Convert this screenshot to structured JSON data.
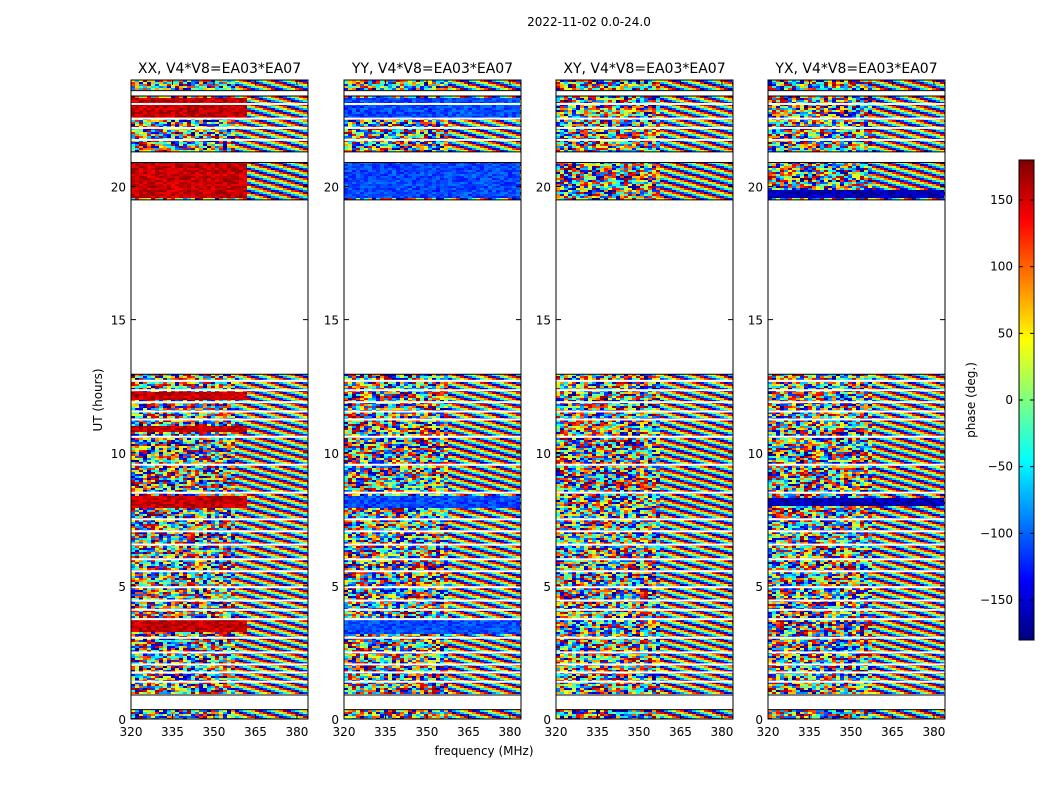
{
  "chart_data": {
    "type": "heatmap",
    "title": "2022-11-02 0.0-24.0",
    "xlabel": "frequency (MHz)",
    "ylabel": "UT (hours)",
    "xlim": [
      320,
      384
    ],
    "ylim": [
      0,
      24
    ],
    "xticks": [
      320,
      335,
      350,
      365,
      380
    ],
    "yticks": [
      0,
      5,
      10,
      15,
      20
    ],
    "panels": [
      {
        "title": "XX, V4*V8=EA03*EA07",
        "bias_phase": 155,
        "bias_bands": [
          [
            19.55,
            20.9
          ],
          [
            7.9,
            8.4
          ],
          [
            3.3,
            3.7
          ],
          [
            22.6,
            23.3
          ],
          [
            10.75,
            11.0
          ],
          [
            12.0,
            12.25
          ]
        ],
        "bias_fmax": 362
      },
      {
        "title": "YY, V4*V8=EA03*EA07",
        "bias_phase": -110,
        "bias_bands": [
          [
            19.55,
            20.9
          ],
          [
            7.9,
            8.4
          ],
          [
            3.2,
            3.7
          ],
          [
            22.6,
            23.3
          ]
        ],
        "bias_fmax": 384
      },
      {
        "title": "XY, V4*V8=EA03*EA07",
        "bias_phase": null,
        "bias_bands": [],
        "bias_fmax": 0
      },
      {
        "title": "YX, V4*V8=EA03*EA07",
        "bias_phase": -160,
        "bias_bands": [
          [
            19.55,
            19.9
          ],
          [
            8.0,
            8.3
          ]
        ],
        "bias_fmax": 384
      }
    ],
    "gaps": [
      [
        0.35,
        0.9
      ],
      [
        12.95,
        19.5
      ],
      [
        20.9,
        21.3
      ],
      [
        23.4,
        23.6
      ]
    ],
    "colorbar": {
      "label": "phase (deg.)",
      "range": [
        -180,
        180
      ],
      "ticks": [
        -150,
        -100,
        -50,
        0,
        50,
        100,
        150
      ],
      "colormap": "jet"
    }
  }
}
